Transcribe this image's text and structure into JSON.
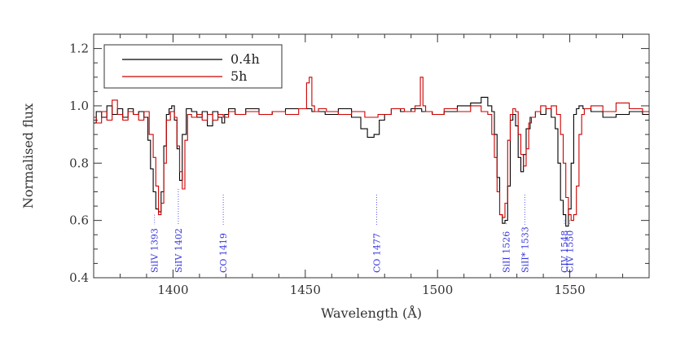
{
  "chart_data": {
    "type": "line",
    "xlabel": "Wavelength (Å)",
    "ylabel": "Normalised flux",
    "xlim": [
      1370,
      1580
    ],
    "ylim": [
      0.4,
      1.25
    ],
    "x_ticks": [
      1400,
      1450,
      1500,
      1550
    ],
    "y_ticks": [
      0.4,
      0.6,
      0.8,
      1.0,
      1.2
    ],
    "x_tick_labels": [
      "1400",
      "1450",
      "1500",
      "1550"
    ],
    "y_tick_labels": [
      "0.4",
      "0.6",
      "0.8",
      "1.0",
      "1.2"
    ],
    "legend_position": "top-left",
    "grid": false,
    "series": [
      {
        "name": "0.4h",
        "color": "#000000",
        "x": [
          1370,
          1372,
          1374,
          1376,
          1378,
          1380,
          1382,
          1384,
          1386,
          1388,
          1390,
          1391,
          1392,
          1393,
          1394,
          1395,
          1396,
          1397,
          1398,
          1399,
          1400,
          1401,
          1402,
          1403,
          1404,
          1406,
          1408,
          1410,
          1412,
          1414,
          1416,
          1418,
          1419,
          1420,
          1422,
          1425,
          1430,
          1435,
          1440,
          1445,
          1450,
          1455,
          1460,
          1465,
          1470,
          1472,
          1475,
          1477,
          1479,
          1481,
          1484,
          1488,
          1492,
          1496,
          1500,
          1505,
          1510,
          1515,
          1518,
          1520,
          1521,
          1522,
          1523,
          1524,
          1525,
          1526,
          1527,
          1528,
          1529,
          1530,
          1531,
          1532,
          1533,
          1534,
          1536,
          1538,
          1540,
          1542,
          1544,
          1545,
          1546,
          1547,
          1548,
          1549,
          1550,
          1551,
          1552,
          1553,
          1554,
          1556,
          1560,
          1565,
          1570,
          1575,
          1580
        ],
        "y": [
          0.94,
          0.98,
          0.96,
          1.0,
          0.97,
          0.99,
          0.96,
          0.99,
          0.97,
          0.98,
          0.96,
          0.88,
          0.78,
          0.7,
          0.64,
          0.63,
          0.7,
          0.86,
          0.97,
          0.99,
          1.0,
          0.95,
          0.85,
          0.74,
          0.9,
          0.99,
          0.98,
          0.96,
          0.98,
          0.93,
          0.98,
          0.96,
          0.94,
          0.97,
          0.99,
          0.97,
          0.99,
          0.97,
          0.98,
          0.99,
          0.99,
          0.98,
          0.97,
          0.99,
          0.96,
          0.92,
          0.89,
          0.9,
          0.95,
          0.97,
          0.99,
          0.98,
          0.99,
          0.98,
          0.97,
          0.98,
          1.0,
          1.01,
          1.03,
          1.0,
          0.98,
          0.9,
          0.75,
          0.62,
          0.59,
          0.6,
          0.72,
          0.95,
          0.97,
          0.93,
          0.82,
          0.77,
          0.83,
          0.92,
          0.96,
          0.98,
          0.97,
          0.99,
          0.96,
          0.92,
          0.8,
          0.67,
          0.62,
          0.58,
          0.64,
          0.8,
          0.97,
          0.99,
          1.0,
          0.99,
          0.98,
          0.96,
          0.97,
          0.98,
          0.97
        ]
      },
      {
        "name": "5h",
        "color": "#cc0000",
        "x": [
          1370,
          1372,
          1374,
          1376,
          1378,
          1380,
          1382,
          1384,
          1386,
          1388,
          1390,
          1392,
          1393,
          1394,
          1395,
          1396,
          1397,
          1398,
          1400,
          1401,
          1402,
          1403,
          1404,
          1405,
          1406,
          1408,
          1410,
          1412,
          1414,
          1416,
          1418,
          1420,
          1422,
          1425,
          1430,
          1435,
          1440,
          1445,
          1450,
          1451,
          1452,
          1453,
          1454,
          1456,
          1460,
          1465,
          1470,
          1475,
          1480,
          1485,
          1490,
          1493,
          1494,
          1495,
          1496,
          1500,
          1505,
          1510,
          1515,
          1518,
          1520,
          1521,
          1522,
          1523,
          1524,
          1525,
          1526,
          1527,
          1528,
          1529,
          1530,
          1531,
          1532,
          1533,
          1534,
          1535,
          1536,
          1538,
          1540,
          1542,
          1544,
          1546,
          1547,
          1548,
          1549,
          1550,
          1551,
          1552,
          1553,
          1554,
          1555,
          1556,
          1560,
          1565,
          1570,
          1575,
          1580
        ],
        "y": [
          0.96,
          0.94,
          0.98,
          0.95,
          1.02,
          0.97,
          0.95,
          0.98,
          0.97,
          0.95,
          0.98,
          0.9,
          0.82,
          0.72,
          0.62,
          0.66,
          0.8,
          0.95,
          0.98,
          0.96,
          0.86,
          0.77,
          0.71,
          0.88,
          0.97,
          0.96,
          0.97,
          0.95,
          0.97,
          0.95,
          0.97,
          0.96,
          0.98,
          0.97,
          0.98,
          0.97,
          0.98,
          0.97,
          0.99,
          1.08,
          1.1,
          1.0,
          0.98,
          0.99,
          0.98,
          0.97,
          0.98,
          0.96,
          0.97,
          0.99,
          0.98,
          1.0,
          1.1,
          1.0,
          0.98,
          0.97,
          0.99,
          0.98,
          1.0,
          0.98,
          0.97,
          0.9,
          0.82,
          0.7,
          0.62,
          0.61,
          0.66,
          0.88,
          0.97,
          0.99,
          0.98,
          0.9,
          0.83,
          0.79,
          0.85,
          0.94,
          0.96,
          0.98,
          1.0,
          0.99,
          1.0,
          0.97,
          0.9,
          0.8,
          0.68,
          0.62,
          0.6,
          0.62,
          0.72,
          0.9,
          0.97,
          0.99,
          1.0,
          0.98,
          1.01,
          0.99,
          0.98
        ]
      }
    ],
    "line_markers": [
      {
        "label": "SiIV 1393",
        "x": 1393,
        "y_top": 0.62
      },
      {
        "label": "SiIV 1402",
        "x": 1402,
        "y_top": 0.71
      },
      {
        "label": "CO 1419",
        "x": 1419,
        "y_top": 0.69
      },
      {
        "label": "CO 1477",
        "x": 1477,
        "y_top": 0.69
      },
      {
        "label": "SiII 1526",
        "x": 1526,
        "y_top": 0.59
      },
      {
        "label": "SiII* 1533",
        "x": 1533,
        "y_top": 0.69
      },
      {
        "label": "CIV 1548",
        "x": 1548,
        "y_top": 0.6
      },
      {
        "label": "CIV 1550",
        "x": 1550,
        "y_top": 0.6
      }
    ]
  }
}
